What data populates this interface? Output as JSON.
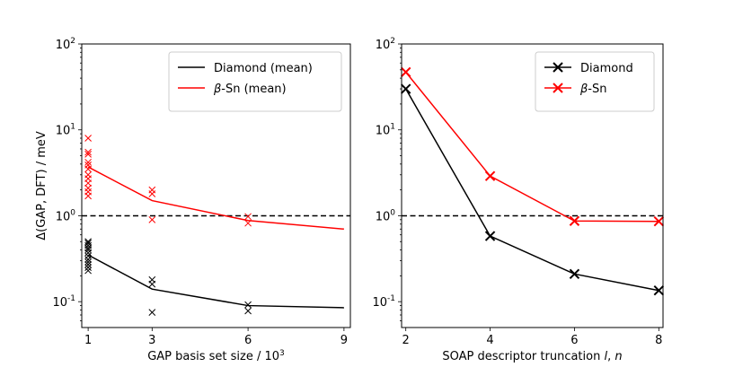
{
  "chart_data": [
    {
      "type": "line",
      "yscale": "log",
      "xlim": [
        0.8,
        9.2
      ],
      "ylim": [
        0.05,
        100
      ],
      "xticks": [
        1,
        3,
        6,
        9
      ],
      "xlabel": "GAP basis set size / 10³",
      "ylabel": "Δ(GAP, DFT) / meV",
      "reference_line": {
        "y": 1.0,
        "style": "dashed",
        "color": "#000000"
      },
      "legend": {
        "placement": "top-right"
      },
      "series": [
        {
          "name": "Diamond (mean)",
          "color": "#000000",
          "x": [
            1,
            3,
            6,
            9
          ],
          "y": [
            0.35,
            0.14,
            0.09,
            0.085
          ],
          "scatter_x": [
            1,
            1,
            1,
            1,
            1,
            1,
            1,
            1,
            1,
            1,
            1,
            1,
            3,
            3,
            3,
            6,
            6
          ],
          "scatter_y": [
            0.5,
            0.48,
            0.45,
            0.42,
            0.4,
            0.37,
            0.34,
            0.31,
            0.29,
            0.27,
            0.25,
            0.23,
            0.18,
            0.16,
            0.075,
            0.092,
            0.078
          ]
        },
        {
          "name": "β-Sn (mean)",
          "color": "#ff0000",
          "x": [
            1,
            3,
            6,
            9
          ],
          "y": [
            3.7,
            1.5,
            0.88,
            0.7
          ],
          "scatter_x": [
            1,
            1,
            1,
            1,
            1,
            1,
            1,
            1,
            1,
            1,
            1,
            1,
            3,
            3,
            3,
            6,
            6
          ],
          "scatter_y": [
            8.0,
            5.5,
            5.2,
            4.2,
            3.9,
            3.5,
            3.0,
            2.7,
            2.4,
            2.1,
            1.9,
            1.7,
            2.0,
            1.8,
            0.9,
            0.98,
            0.82
          ]
        }
      ]
    },
    {
      "type": "line",
      "yscale": "log",
      "xlim": [
        1.9,
        8.1
      ],
      "ylim": [
        0.05,
        100
      ],
      "xticks": [
        2,
        4,
        6,
        8
      ],
      "xlabel": "SOAP descriptor truncation l, n",
      "ylabel": "",
      "reference_line": {
        "y": 1.0,
        "style": "dashed",
        "color": "#000000"
      },
      "legend": {
        "placement": "top-right"
      },
      "series": [
        {
          "name": "Diamond",
          "color": "#000000",
          "x": [
            2,
            4,
            6,
            8
          ],
          "y": [
            30,
            0.58,
            0.21,
            0.135
          ]
        },
        {
          "name": "β-Sn",
          "color": "#ff0000",
          "x": [
            2,
            4,
            6,
            8
          ],
          "y": [
            47,
            2.9,
            0.87,
            0.86
          ]
        }
      ]
    }
  ]
}
